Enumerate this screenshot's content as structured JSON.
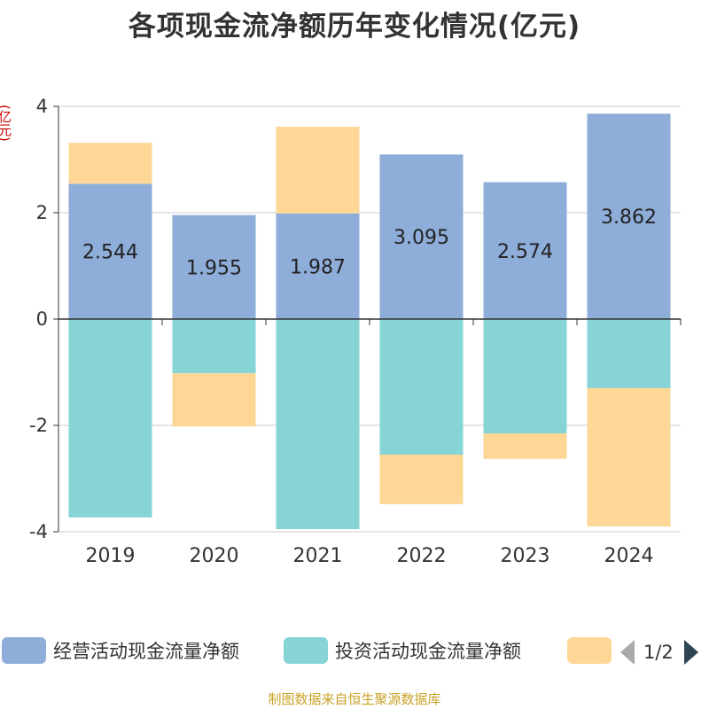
{
  "chart_data": {
    "type": "bar",
    "stacked": true,
    "title": "各项现金流净额历年变化情况(亿元)",
    "ylabel": "(亿元)",
    "categories": [
      "2019",
      "2020",
      "2021",
      "2022",
      "2023",
      "2024"
    ],
    "ylim": [
      -4,
      4
    ],
    "yticks": [
      4,
      2,
      0,
      -2,
      -4
    ],
    "grid": true,
    "series": [
      {
        "name": "经营活动现金流量净额",
        "color": "#8eadd9",
        "values": [
          2.544,
          1.955,
          1.987,
          3.095,
          2.574,
          3.862
        ],
        "labels": [
          "2.544",
          "1.955",
          "1.987",
          "3.095",
          "2.574",
          "3.862"
        ]
      },
      {
        "name": "投资活动现金流量净额",
        "color": "#86d4d6",
        "values": [
          -3.73,
          -1.02,
          -3.95,
          -2.55,
          -2.15,
          -1.3
        ]
      },
      {
        "name": "",
        "color": "#fed797",
        "values": [
          0.77,
          -1.0,
          1.63,
          -0.93,
          -0.48,
          -2.6
        ]
      }
    ],
    "legend_position": "bottom"
  },
  "pager": {
    "text": "1/2"
  },
  "source": "制图数据来自恒生聚源数据库"
}
